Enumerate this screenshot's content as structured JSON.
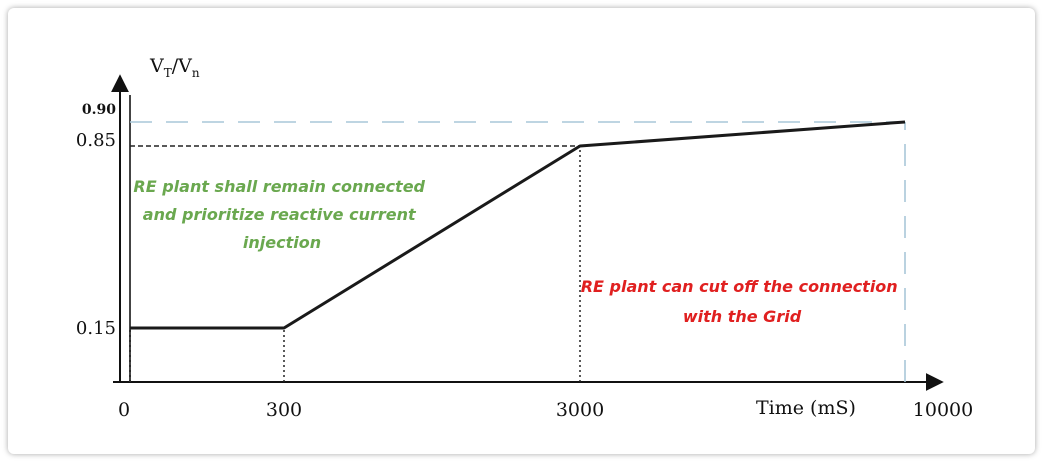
{
  "chart_data": {
    "type": "line",
    "title": "",
    "ylabel_main": "V",
    "ylabel_sub1": "T",
    "ylabel_sep": "/V",
    "ylabel_sub2": "n",
    "xlabel": "Time (mS)",
    "x_tick_labels": [
      "0",
      "300",
      "3000",
      "10000"
    ],
    "y_tick_labels": [
      "0.15",
      "0.85",
      "0.90"
    ],
    "series": [
      {
        "values": [
          {
            "x": 0,
            "y": 0.15
          },
          {
            "x": 300,
            "y": 0.15
          },
          {
            "x": 3000,
            "y": 0.85
          },
          {
            "x": 10000,
            "y": 0.9
          }
        ]
      }
    ],
    "reference_lines": [
      {
        "x_start": 0,
        "x_end": 3000,
        "y": 0.85
      },
      {
        "x": 3000,
        "y_start": 0,
        "y_end": 0.85
      },
      {
        "x": 300,
        "y_start": 0,
        "y_end": 0.15
      },
      {
        "x": 0,
        "y_start": 0,
        "y_end": 0.15
      },
      {
        "x_start": 0,
        "x_end": 10000,
        "y": 0.9
      },
      {
        "x": 10000,
        "y_start": 0,
        "y_end": 0.9
      }
    ],
    "annotations": [
      {
        "id": "green",
        "lines": [
          "RE plant shall remain connected",
          "and prioritize reactive current",
          "injection"
        ],
        "color": "#6aa84f"
      },
      {
        "id": "red",
        "lines": [
          "RE plant can cut off the connection",
          "with the Grid"
        ],
        "color": "#e02020"
      }
    ],
    "colors": {
      "curve": "#1a1a1a",
      "dash_light": "#a9c7d8",
      "axis": "#111111"
    }
  }
}
